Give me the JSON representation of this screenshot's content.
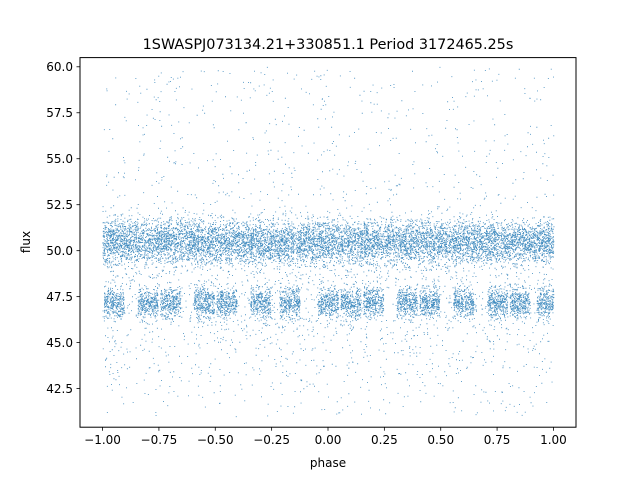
{
  "chart_data": {
    "type": "scatter",
    "title": "1SWASPJ073134.21+330851.1 Period 3172465.25s",
    "xlabel": "phase",
    "ylabel": "flux",
    "xlim": [
      -1.1,
      1.1
    ],
    "ylim": [
      40.4,
      60.5
    ],
    "xticks": [
      -1.0,
      -0.75,
      -0.5,
      -0.25,
      0.0,
      0.25,
      0.5,
      0.75,
      1.0
    ],
    "xtick_labels": [
      "−1.00",
      "−0.75",
      "−0.50",
      "−0.25",
      "0.00",
      "0.25",
      "0.50",
      "0.75",
      "1.00"
    ],
    "yticks": [
      42.5,
      45.0,
      47.5,
      50.0,
      52.5,
      55.0,
      57.5,
      60.0
    ],
    "ytick_labels": [
      "42.5",
      "45.0",
      "47.5",
      "50.0",
      "52.5",
      "55.0",
      "57.5",
      "60.0"
    ],
    "grid": false,
    "marker_color": "#1f77b4",
    "series": [
      {
        "description_of_distribution": "dense band centered near flux 50.5 (spread ~49-52) across phase -1 to 1; secondary dips near flux 47 at phases ≈ -0.95,-0.8,-0.7,-0.55,-0.45,-0.3,-0.15,0.0,0.1,0.2,0.35,0.45,0.6,0.75,0.85,0.95; sparse outliers 41-60",
        "band_center": 50.5,
        "band_spread": 1.0,
        "dip_center": 47.2,
        "dip_spread": 0.7,
        "dip_phases": [
          -0.95,
          -0.8,
          -0.7,
          -0.55,
          -0.45,
          -0.3,
          -0.17,
          0.0,
          0.1,
          0.2,
          0.35,
          0.45,
          0.6,
          0.75,
          0.85,
          0.97
        ],
        "outlier_range": [
          41.0,
          60.0
        ]
      }
    ]
  }
}
